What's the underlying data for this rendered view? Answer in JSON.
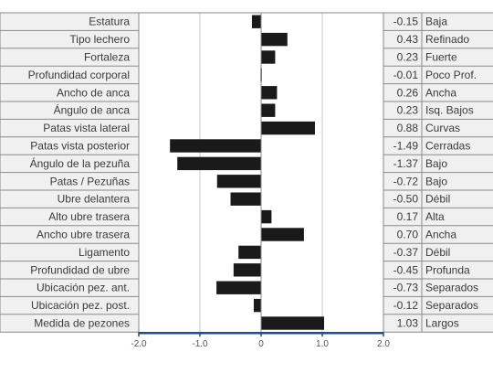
{
  "chart_data": {
    "type": "bar",
    "orientation": "horizontal",
    "categories": [
      "Estatura",
      "Tipo lechero",
      "Fortaleza",
      "Profundidad corporal",
      "Ancho de anca",
      "Ángulo de anca",
      "Patas vista lateral",
      "Patas vista posterior",
      "Ángulo de la pezuña",
      "Patas / Pezuñas",
      "Ubre delantera",
      "Alto ubre trasera",
      "Ancho ubre trasera",
      "Ligamento",
      "Profundidad de ubre",
      "Ubicación pez. ant.",
      "Ubicación pez. post.",
      "Medida de pezones"
    ],
    "values": [
      -0.15,
      0.43,
      0.23,
      -0.01,
      0.26,
      0.23,
      0.88,
      -1.49,
      -1.37,
      -0.72,
      -0.5,
      0.17,
      0.7,
      -0.37,
      -0.45,
      -0.73,
      -0.12,
      1.03
    ],
    "value_labels": [
      "-0.15",
      "0.43",
      "0.23",
      "-0.01",
      "0.26",
      "0.23",
      "0.88",
      "-1.49",
      "-1.37",
      "-0.72",
      "-0.50",
      "0.17",
      "0.70",
      "-0.37",
      "-0.45",
      "-0.73",
      "-0.12",
      "1.03"
    ],
    "descriptors": [
      "Baja",
      "Refinado",
      "Fuerte",
      "Poco Prof.",
      "Ancha",
      "Isq. Bajos",
      "Curvas",
      "Cerradas",
      "Bajo",
      "Bajo",
      "Débil",
      "Alta",
      "Ancha",
      "Débil",
      "Profunda",
      "Separados",
      "Separados",
      "Largos"
    ],
    "xlim": [
      -2.0,
      2.0
    ],
    "xticks": [
      -2.0,
      -1.0,
      0,
      1.0,
      2.0
    ],
    "xtick_labels": [
      "-2.0",
      "-1.0",
      "0",
      "1.0",
      "2.0"
    ],
    "grid": true,
    "colors": {
      "bar": "#1a1a1a",
      "axis": "#1f4e8c",
      "grid": "#c8c8c8",
      "cell_border": "#8a8a8a"
    }
  }
}
